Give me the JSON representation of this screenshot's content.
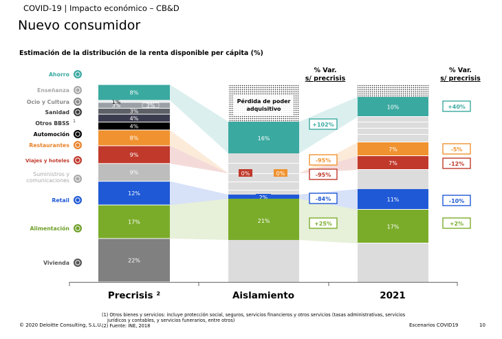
{
  "header": {
    "breadcrumb": "COVID-19 | Impacto económico – CB&D",
    "title": "Nuevo consumidor",
    "subtitle": "Estimación de la distribución de la renta disponible per cápita (%)"
  },
  "columns": {
    "var_header_1": [
      "% Var.",
      "s/ precrisis"
    ],
    "var_header_2": [
      "% Var.",
      "s/ precrisis"
    ],
    "loss_label": [
      "Pérdida de poder",
      "adquisitivo"
    ]
  },
  "chart_data": {
    "type": "bar",
    "stacked": true,
    "categories": [
      "Precrisis ²",
      "Aislamiento",
      "2021"
    ],
    "series": [
      {
        "name": "Vivienda",
        "color": "#808080",
        "values": [
          22,
          null,
          null
        ],
        "labels": [
          "22%",
          "",
          ""
        ]
      },
      {
        "name": "Alimentación",
        "color": "#7aac2a",
        "values": [
          17,
          21,
          17
        ],
        "labels": [
          "17%",
          "21%",
          "17%"
        ],
        "var": [
          "",
          "+25%",
          "+2%"
        ]
      },
      {
        "name": "Retail",
        "color": "#1f59d6",
        "values": [
          12,
          2,
          11
        ],
        "labels": [
          "12%",
          "2%",
          "11%"
        ],
        "var": [
          "",
          "-84%",
          "-10%"
        ]
      },
      {
        "name": "Suministros y comunicaciones",
        "color": "#bdbdbd",
        "values": [
          9,
          null,
          null
        ],
        "labels": [
          "9%",
          "",
          ""
        ]
      },
      {
        "name": "Viajes y hoteles",
        "color": "#c0392b",
        "values": [
          9,
          0,
          7
        ],
        "labels": [
          "9%",
          "0%",
          "7%"
        ],
        "var": [
          "",
          "-95%",
          "-12%"
        ]
      },
      {
        "name": "Restaurantes",
        "color": "#f0922f",
        "values": [
          8,
          0,
          7
        ],
        "labels": [
          "8%",
          "0%",
          "7%"
        ],
        "var": [
          "",
          "-95%",
          "-5%"
        ]
      },
      {
        "name": "Automoción",
        "color": "#000000",
        "values": [
          4,
          null,
          null
        ],
        "labels": [
          "4%",
          "",
          ""
        ]
      },
      {
        "name": "Otros BBSS ¹",
        "color": "#3b3b4f",
        "values": [
          4,
          null,
          null
        ],
        "labels": [
          "4%",
          "",
          ""
        ]
      },
      {
        "name": "Sanidad",
        "color": "#5d6066",
        "values": [
          3,
          null,
          null
        ],
        "labels": [
          "3%",
          "",
          ""
        ]
      },
      {
        "name": "Ocio y Cultura",
        "color": "#9aa0a6",
        "values": [
          3,
          null,
          null
        ],
        "labels": [
          "3%",
          "",
          ""
        ]
      },
      {
        "name": "Enseñanza",
        "color": "#e8e8e8",
        "values": [
          1,
          null,
          null
        ],
        "labels": [
          "1%",
          "",
          ""
        ]
      },
      {
        "name": "Ahorro",
        "color": "#3aa9a0",
        "values": [
          8,
          16,
          10
        ],
        "labels": [
          "8%",
          "16%",
          "10%"
        ],
        "var": [
          "",
          "+102%",
          "+40%"
        ]
      }
    ],
    "legend_colors": {
      "Ahorro": "#3aa9a0",
      "Enseñanza": "#a8a8a8",
      "Ocio y Cultura": "#8a8a8a",
      "Sanidad": "#3a3a3a",
      "Otros BBSS": "#3a3a3a",
      "Automoción": "#000000",
      "Restaurantes": "#e8822a",
      "Viajes y hoteles": "#c0392b",
      "Suministros y comunicaciones": "#a8a8a8",
      "Retail": "#1f59d6",
      "Alimentación": "#6fa02a",
      "Vivienda": "#555555"
    }
  },
  "variations": {
    "aislamiento": [
      {
        "text": "+102%",
        "color": "#3aa9a0"
      },
      {
        "text": "-95%",
        "color": "#f0922f"
      },
      {
        "text": "-95%",
        "color": "#c0392b"
      },
      {
        "text": "-84%",
        "color": "#1f59d6"
      },
      {
        "text": "+25%",
        "color": "#7aac2a"
      }
    ],
    "y2021": [
      {
        "text": "+40%",
        "color": "#3aa9a0"
      },
      {
        "text": "-5%",
        "color": "#f0922f"
      },
      {
        "text": "-12%",
        "color": "#c0392b"
      },
      {
        "text": "-10%",
        "color": "#1f59d6"
      },
      {
        "text": "+2%",
        "color": "#7aac2a"
      }
    ]
  },
  "footnotes": [
    "(1) Otros bienes y servicios: incluye protección social, seguros, servicios financieros y otros servicios (tasas administrativas, servicios",
    "jurídicos y contables, y servicios funerarios, entre otros)",
    "(2) Fuente: INE, 2018"
  ],
  "footer": {
    "copyright": "© 2020 Deloitte Consulting, S.L.U.",
    "section": "Escenarios COVID19",
    "page": "10"
  },
  "icons": {
    "Ahorro": "piggy-bank-icon",
    "Enseñanza": "book-icon",
    "Ocio y Cultura": "check-icon",
    "Sanidad": "health-icon",
    "Automoción": "car-icon",
    "Restaurantes": "cutlery-icon",
    "Viajes y hoteles": "plane-icon",
    "Suministros y comunicaciones": "plug-icon",
    "Retail": "shopping-cart-icon",
    "Alimentación": "basket-icon",
    "Vivienda": "house-icon"
  }
}
